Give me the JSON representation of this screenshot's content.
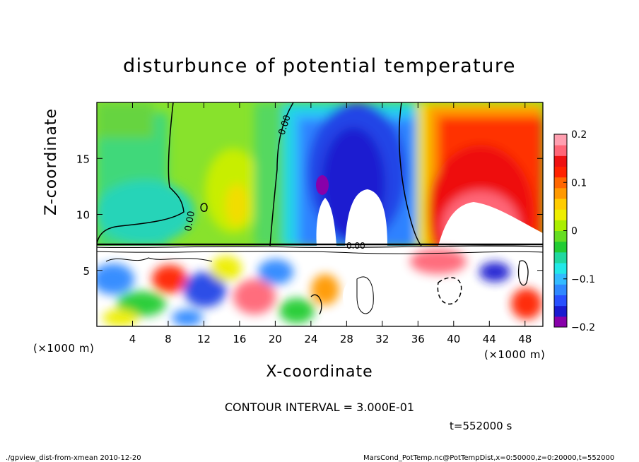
{
  "chart_data": {
    "type": "heatmap",
    "title": "disturbunce of potential temperature",
    "xlabel": "X-coordinate",
    "ylabel": "Z-coordinate",
    "x_unit": "(×1000 m)",
    "y_unit": "(×1000 m)",
    "xlim": [
      0,
      50
    ],
    "ylim": [
      0,
      20
    ],
    "x_ticks": [
      "4",
      "8",
      "12",
      "16",
      "20",
      "24",
      "28",
      "32",
      "36",
      "40",
      "44",
      "48"
    ],
    "y_ticks": [
      "5",
      "10",
      "15"
    ],
    "colorbar": {
      "range": [
        -0.2,
        0.2
      ],
      "tick_labels": [
        "0.2",
        "0.1",
        "0",
        "−0.1",
        "−0.2"
      ],
      "colors": [
        "#8800aa",
        "#1a1ad0",
        "#2850ff",
        "#2f88ff",
        "#33bbff",
        "#22e8e8",
        "#20d8a0",
        "#22cc33",
        "#66dd22",
        "#aaee00",
        "#eeee00",
        "#ffcc00",
        "#ff9900",
        "#ff6600",
        "#ff2200",
        "#ee1111",
        "#ff6677",
        "#ff9fb0"
      ]
    },
    "contour_labels": [
      "0.00",
      "0.00",
      "0.00"
    ],
    "contour_interval": "CONTOUR INTERVAL = 3.000E-01",
    "time": "t=552000 s",
    "footer_left": "./gpview_dist-from-xmean  2010-12-20",
    "footer_right": "MarsCond_PotTemp.nc@PotTempDist,x=0:50000,z=0:20000,t=552000"
  }
}
